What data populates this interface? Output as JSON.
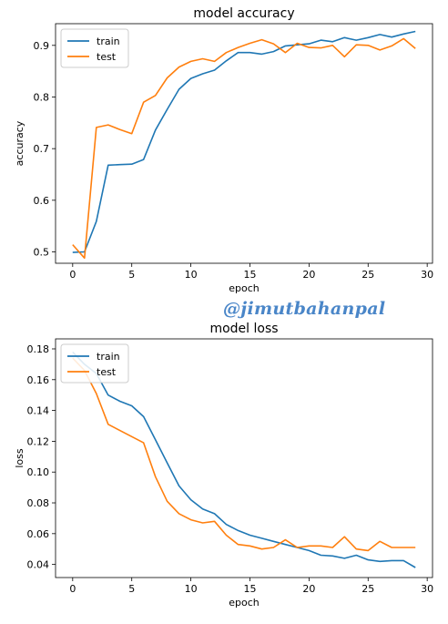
{
  "watermark": "@jimutbahanpal",
  "colors": {
    "train": "#1f77b4",
    "test": "#ff7f0e"
  },
  "chart_data": [
    {
      "type": "line",
      "title": "model accuracy",
      "xlabel": "epoch",
      "ylabel": "accuracy",
      "xlim": [
        -1.45,
        30.45
      ],
      "ylim": [
        0.478,
        0.942
      ],
      "xticks": [
        0,
        5,
        10,
        15,
        20,
        25,
        30
      ],
      "xtick_labels": [
        "0",
        "5",
        "10",
        "15",
        "20",
        "25",
        "30"
      ],
      "yticks": [
        0.5,
        0.6,
        0.7,
        0.8,
        0.9
      ],
      "ytick_labels": [
        "0.5",
        "0.6",
        "0.7",
        "0.8",
        "0.9"
      ],
      "legend_position": "top-left",
      "grid": false,
      "x": [
        0,
        1,
        2,
        3,
        4,
        5,
        6,
        7,
        8,
        9,
        10,
        11,
        12,
        13,
        14,
        15,
        16,
        17,
        18,
        19,
        20,
        21,
        22,
        23,
        24,
        25,
        26,
        27,
        28,
        29
      ],
      "series": [
        {
          "name": "train",
          "values": [
            0.499,
            0.5,
            0.559,
            0.668,
            0.669,
            0.67,
            0.679,
            0.736,
            0.776,
            0.815,
            0.836,
            0.845,
            0.852,
            0.87,
            0.886,
            0.886,
            0.883,
            0.888,
            0.899,
            0.901,
            0.903,
            0.91,
            0.907,
            0.915,
            0.91,
            0.915,
            0.921,
            0.916,
            0.922,
            0.927
          ]
        },
        {
          "name": "test",
          "values": [
            0.514,
            0.488,
            0.741,
            0.746,
            0.737,
            0.729,
            0.79,
            0.803,
            0.837,
            0.858,
            0.869,
            0.874,
            0.869,
            0.886,
            0.896,
            0.904,
            0.911,
            0.903,
            0.886,
            0.904,
            0.896,
            0.895,
            0.9,
            0.878,
            0.901,
            0.9,
            0.891,
            0.899,
            0.913,
            0.894
          ]
        }
      ]
    },
    {
      "type": "line",
      "title": "model loss",
      "xlabel": "epoch",
      "ylabel": "loss",
      "xlim": [
        -1.45,
        30.45
      ],
      "ylim": [
        0.0315,
        0.1865
      ],
      "xticks": [
        0,
        5,
        10,
        15,
        20,
        25,
        30
      ],
      "xtick_labels": [
        "0",
        "5",
        "10",
        "15",
        "20",
        "25",
        "30"
      ],
      "yticks": [
        0.04,
        0.06,
        0.08,
        0.1,
        0.12,
        0.14,
        0.16,
        0.18
      ],
      "ytick_labels": [
        "0.04",
        "0.06",
        "0.08",
        "0.10",
        "0.12",
        "0.14",
        "0.16",
        "0.18"
      ],
      "legend_position": "top-left",
      "grid": false,
      "x": [
        0,
        1,
        2,
        3,
        4,
        5,
        6,
        7,
        8,
        9,
        10,
        11,
        12,
        13,
        14,
        15,
        16,
        17,
        18,
        19,
        20,
        21,
        22,
        23,
        24,
        25,
        26,
        27,
        28,
        29
      ],
      "series": [
        {
          "name": "train",
          "values": [
            0.178,
            0.17,
            0.164,
            0.15,
            0.146,
            0.143,
            0.136,
            0.121,
            0.106,
            0.091,
            0.082,
            0.076,
            0.073,
            0.066,
            0.062,
            0.059,
            0.057,
            0.055,
            0.053,
            0.051,
            0.049,
            0.046,
            0.0455,
            0.044,
            0.046,
            0.043,
            0.042,
            0.0425,
            0.0425,
            0.038
          ]
        },
        {
          "name": "test",
          "values": [
            0.174,
            0.166,
            0.151,
            0.131,
            0.127,
            0.123,
            0.119,
            0.097,
            0.081,
            0.073,
            0.069,
            0.067,
            0.068,
            0.059,
            0.053,
            0.052,
            0.05,
            0.051,
            0.056,
            0.051,
            0.052,
            0.052,
            0.051,
            0.058,
            0.05,
            0.049,
            0.055,
            0.051,
            0.051,
            0.051
          ]
        }
      ]
    }
  ]
}
